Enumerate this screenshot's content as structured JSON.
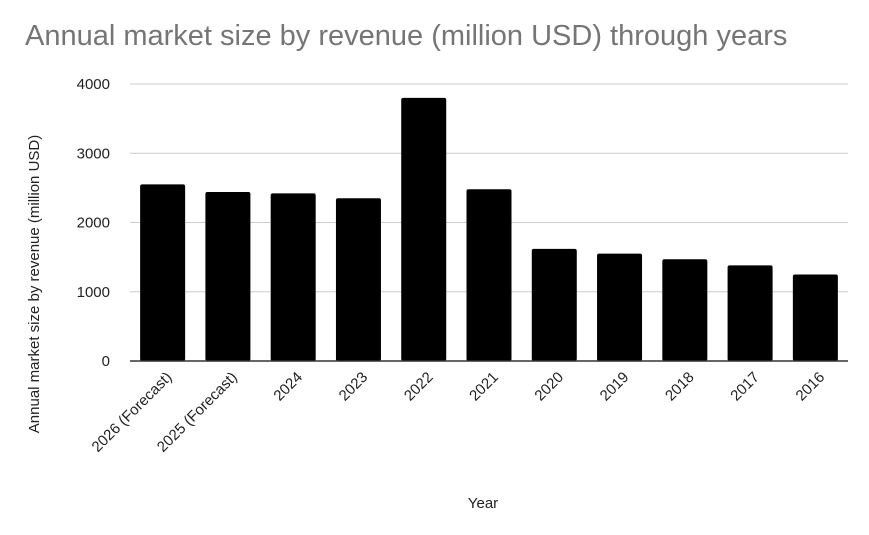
{
  "chart_data": {
    "type": "bar",
    "title": "Annual market size by revenue (million USD) through years",
    "xlabel": "Year",
    "ylabel": "Annual market size by revenue (million USD)",
    "categories": [
      "2026 (Forecast)",
      "2025 (Forecast)",
      "2024",
      "2023",
      "2022",
      "2021",
      "2020",
      "2019",
      "2018",
      "2017",
      "2016"
    ],
    "values": [
      2550,
      2440,
      2420,
      2350,
      3800,
      2480,
      1620,
      1550,
      1470,
      1380,
      1250
    ],
    "ylim": [
      0,
      4000
    ],
    "yticks": [
      0,
      1000,
      2000,
      3000,
      4000
    ],
    "grid": true,
    "legend": "none",
    "bar_color": "#000000",
    "grid_color": "#cccccc",
    "title_color": "#757575",
    "text_color": "#222222"
  }
}
